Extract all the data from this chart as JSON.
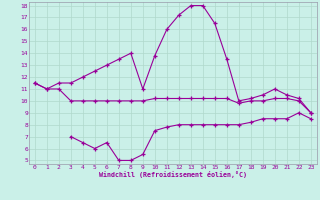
{
  "xlabel": "Windchill (Refroidissement éolien,°C)",
  "bg_color": "#caf0e8",
  "grid_color": "#b0d8cc",
  "line_color": "#990099",
  "x_hours": [
    0,
    1,
    2,
    3,
    4,
    5,
    6,
    7,
    8,
    9,
    10,
    11,
    12,
    13,
    14,
    15,
    16,
    17,
    18,
    19,
    20,
    21,
    22,
    23
  ],
  "series_top": [
    11.5,
    11.0,
    11.5,
    11.5,
    12.0,
    12.5,
    13.0,
    13.5,
    14.0,
    11.0,
    13.8,
    16.0,
    17.2,
    18.0,
    18.0,
    16.5,
    13.5,
    10.0,
    10.2,
    10.5,
    11.0,
    10.5,
    10.2,
    9.0
  ],
  "series_mid": [
    11.5,
    11.0,
    11.0,
    10.0,
    10.0,
    10.0,
    10.0,
    10.0,
    10.0,
    10.0,
    10.2,
    10.2,
    10.2,
    10.2,
    10.2,
    10.2,
    10.2,
    9.8,
    10.0,
    10.0,
    10.2,
    10.2,
    10.0,
    9.0
  ],
  "series_bot": [
    null,
    null,
    null,
    7.0,
    6.5,
    6.0,
    6.5,
    5.0,
    5.0,
    5.5,
    7.5,
    7.8,
    8.0,
    8.0,
    8.0,
    8.0,
    8.0,
    8.0,
    8.2,
    8.5,
    8.5,
    8.5,
    9.0,
    8.5
  ],
  "ylim": [
    5,
    18
  ],
  "xlim": [
    0,
    23
  ],
  "yticks": [
    5,
    6,
    7,
    8,
    9,
    10,
    11,
    12,
    13,
    14,
    15,
    16,
    17,
    18
  ],
  "xticks": [
    0,
    1,
    2,
    3,
    4,
    5,
    6,
    7,
    8,
    9,
    10,
    11,
    12,
    13,
    14,
    15,
    16,
    17,
    18,
    19,
    20,
    21,
    22,
    23
  ]
}
